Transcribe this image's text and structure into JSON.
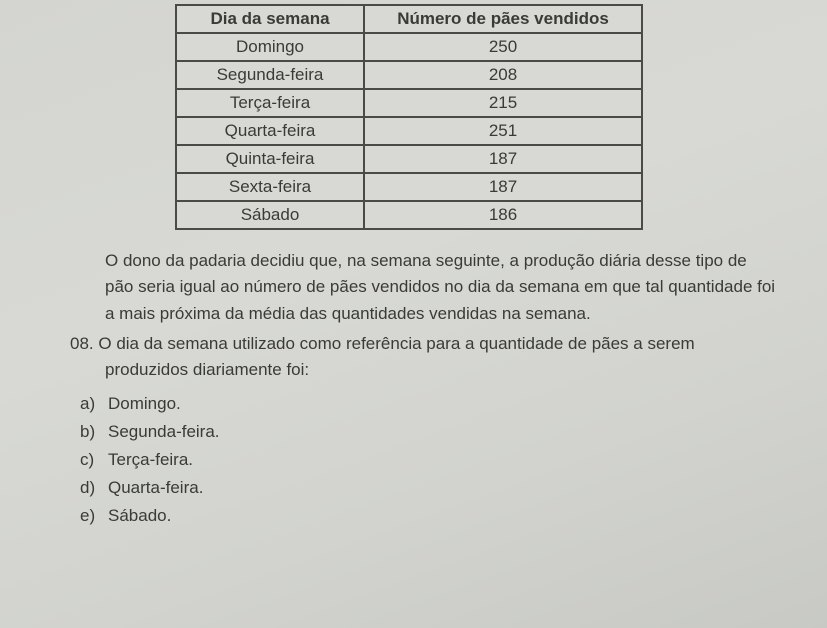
{
  "table": {
    "header_day": "Dia da semana",
    "header_count": "Número de pães vendidos",
    "rows": [
      {
        "day": "Domingo",
        "count": "250"
      },
      {
        "day": "Segunda-feira",
        "count": "208"
      },
      {
        "day": "Terça-feira",
        "count": "215"
      },
      {
        "day": "Quarta-feira",
        "count": "251"
      },
      {
        "day": "Quinta-feira",
        "count": "187"
      },
      {
        "day": "Sexta-feira",
        "count": "187"
      },
      {
        "day": "Sábado",
        "count": "186"
      }
    ],
    "border_color": "#4a4a47",
    "cell_bg": "#d8d9d5",
    "font_size": 17
  },
  "paragraph": "O dono da padaria decidiu que, na semana seguinte, a produção diária desse tipo de pão seria igual ao número de pães vendidos no dia da semana em que tal quantidade foi a mais próxima da média das quantidades vendidas na semana.",
  "question": {
    "number": "08.",
    "text_line1": "O dia da semana utilizado como referência para a quantidade de pães a serem",
    "text_line2": "produzidos diariamente foi:"
  },
  "options": [
    {
      "letter": "a)",
      "text": "Domingo."
    },
    {
      "letter": "b)",
      "text": "Segunda-feira."
    },
    {
      "letter": "c)",
      "text": "Terça-feira."
    },
    {
      "letter": "d)",
      "text": "Quarta-feira."
    },
    {
      "letter": "e)",
      "text": "Sábado."
    }
  ],
  "colors": {
    "page_bg": "#d6d7d4",
    "text": "#3a3a38"
  }
}
